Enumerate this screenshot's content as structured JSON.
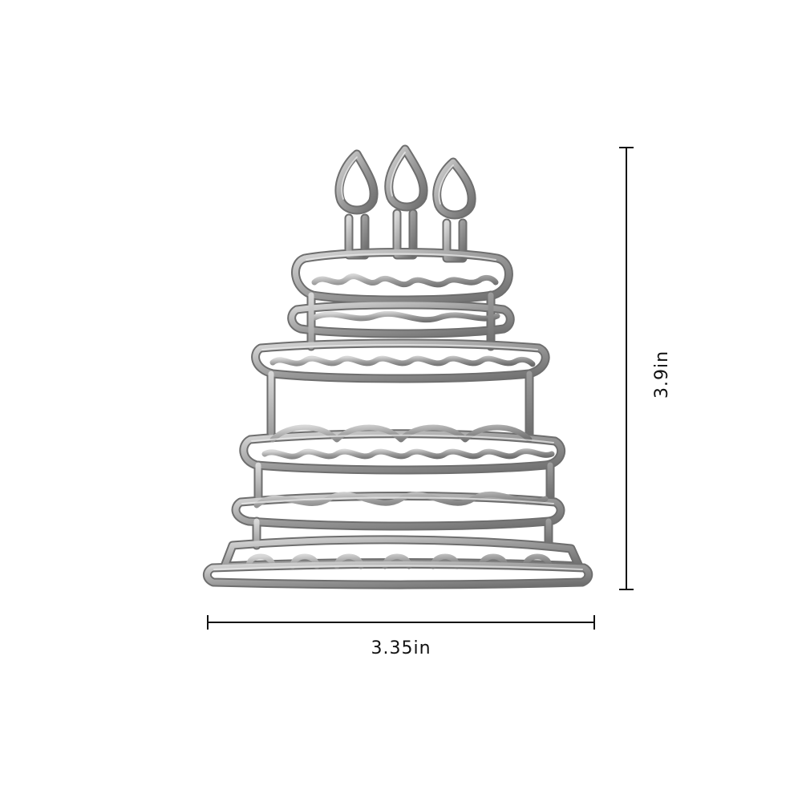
{
  "dimensions": {
    "width_label": "3.35in",
    "height_label": "3.9in"
  },
  "product": {
    "subject": "cake-die",
    "candles": 3,
    "tiers": 4,
    "metal_color": "#9a9a9a",
    "metal_shadow": "#555555",
    "metal_highlight": "#e4e4e4",
    "line_color": "#111111"
  }
}
